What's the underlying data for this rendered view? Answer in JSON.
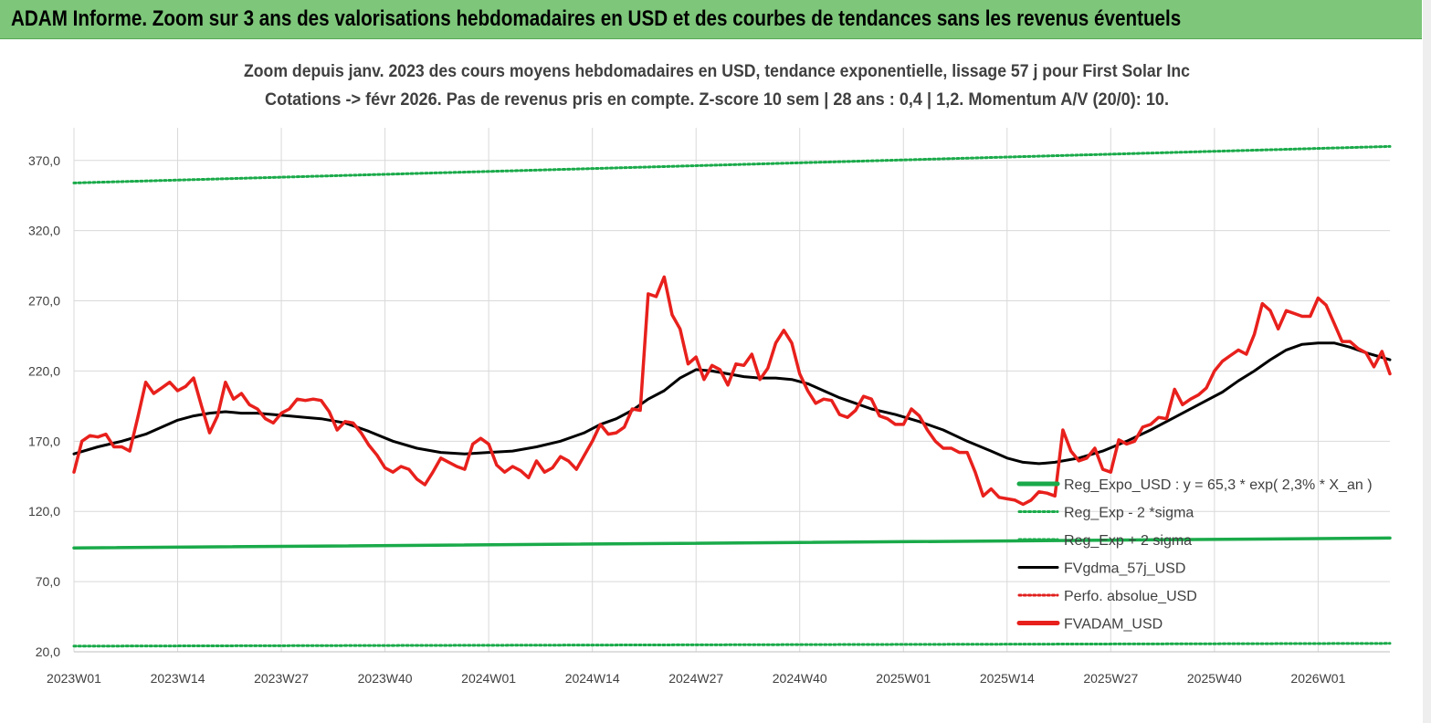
{
  "header": {
    "title": "ADAM Informe. Zoom sur 3 ans des valorisations hebdomadaires en USD et des courbes de tendances sans les revenus éventuels"
  },
  "chart_data": {
    "type": "line",
    "title": "Zoom depuis janv. 2023 des cours moyens hebdomadaires en USD, tendance exponentielle, lissage 57 j pour First Solar Inc",
    "subtitle": "Cotations -> févr 2026.  Pas de revenus pris en compte. Z-score 10 sem  | 28 ans : 0,4 | 1,2. Momentum A/V (20/0): 10.",
    "xlabel": "",
    "ylabel": "",
    "ylim": [
      20,
      390
    ],
    "y_ticks": [
      "20,0",
      "70,0",
      "120,0",
      "170,0",
      "220,0",
      "270,0",
      "320,0",
      "370,0"
    ],
    "y_tick_values": [
      20,
      70,
      120,
      170,
      220,
      270,
      320,
      370
    ],
    "x_ticks": [
      "2023W01",
      "2023W14",
      "2023W27",
      "2023W40",
      "2024W01",
      "2024W14",
      "2024W27",
      "2024W40",
      "2025W01",
      "2025W14",
      "2025W27",
      "2025W40",
      "2026W01"
    ],
    "x_tick_weeks": [
      0,
      13,
      26,
      39,
      52,
      65,
      78,
      91,
      104,
      117,
      130,
      143,
      156
    ],
    "week_count": 165,
    "grid": true,
    "legend_position": "bottom-right",
    "series": [
      {
        "name": "Reg_Expo_USD : y = 65,3 * exp( 2,3% *  X_an )",
        "color": "#1aaa4a",
        "style": "solid-thick",
        "x": [
          0,
          165
        ],
        "values": [
          94,
          101
        ]
      },
      {
        "name": "Reg_Exp - 2 *sigma",
        "color": "#1aaa4a",
        "style": "dotted",
        "x": [
          0,
          165
        ],
        "values": [
          24,
          26
        ]
      },
      {
        "name": "Reg_Exp + 2 sigma",
        "color": "#1aaa4a",
        "style": "dotted",
        "x": [
          0,
          165
        ],
        "values": [
          354,
          380
        ]
      },
      {
        "name": "FVgdma_57j_USD",
        "color": "#000000",
        "style": "solid",
        "x": [
          0,
          3,
          6,
          9,
          11,
          13,
          15,
          17,
          19,
          21,
          23,
          25,
          27,
          29,
          31,
          34,
          37,
          40,
          43,
          46,
          49,
          52,
          55,
          58,
          61,
          64,
          66,
          68,
          70,
          72,
          74,
          76,
          78,
          80,
          82,
          84,
          86,
          88,
          90,
          92,
          94,
          96,
          98,
          100,
          103,
          106,
          109,
          112,
          115,
          117,
          119,
          121,
          123,
          126,
          129,
          132,
          135,
          138,
          141,
          144,
          146,
          148,
          150,
          152,
          154,
          156,
          158,
          160,
          162,
          165
        ],
        "values": [
          161,
          166,
          170,
          175,
          180,
          185,
          188,
          190,
          191,
          190,
          190,
          189,
          188,
          187,
          186,
          183,
          177,
          170,
          165,
          162,
          161,
          162,
          163,
          166,
          170,
          176,
          182,
          186,
          192,
          200,
          206,
          215,
          221,
          220,
          218,
          216,
          215,
          215,
          214,
          211,
          206,
          201,
          197,
          193,
          189,
          184,
          178,
          170,
          163,
          158,
          155,
          154,
          155,
          158,
          163,
          170,
          178,
          187,
          196,
          205,
          213,
          220,
          228,
          235,
          239,
          240,
          240,
          237,
          233,
          228
        ]
      },
      {
        "name": "Perfo. absolue_USD",
        "color": "#e0201e",
        "style": "dotted",
        "x": [],
        "values": []
      },
      {
        "name": "FVADAM_USD",
        "color": "#e8201c",
        "style": "solid-thick",
        "x": [
          0,
          1,
          2,
          3,
          4,
          5,
          6,
          7,
          8,
          9,
          10,
          11,
          12,
          13,
          14,
          15,
          16,
          17,
          18,
          19,
          20,
          21,
          22,
          23,
          24,
          25,
          26,
          27,
          28,
          29,
          30,
          31,
          32,
          33,
          34,
          35,
          36,
          37,
          38,
          39,
          40,
          41,
          42,
          43,
          44,
          45,
          46,
          47,
          48,
          49,
          50,
          51,
          52,
          53,
          54,
          55,
          56,
          57,
          58,
          59,
          60,
          61,
          62,
          63,
          64,
          65,
          66,
          67,
          68,
          69,
          70,
          71,
          72,
          73,
          74,
          75,
          76,
          77,
          78,
          79,
          80,
          81,
          82,
          83,
          84,
          85,
          86,
          87,
          88,
          89,
          90,
          91,
          92,
          93,
          94,
          95,
          96,
          97,
          98,
          99,
          100,
          101,
          102,
          103,
          104,
          105,
          106,
          107,
          108,
          109,
          110,
          111,
          112,
          113,
          114,
          115,
          116,
          117,
          118,
          119,
          120,
          121,
          122,
          123,
          124,
          125,
          126,
          127,
          128,
          129,
          130,
          131,
          132,
          133,
          134,
          135,
          136,
          137,
          138,
          139,
          140,
          141,
          142,
          143,
          144,
          145,
          146,
          147,
          148,
          149,
          150,
          151,
          152,
          153,
          154,
          155,
          156,
          157,
          158,
          159,
          160,
          161,
          162,
          163,
          164,
          165
        ],
        "values": [
          148,
          170,
          174,
          173,
          175,
          166,
          166,
          163,
          187,
          212,
          204,
          208,
          212,
          206,
          209,
          215,
          195,
          176,
          188,
          212,
          200,
          204,
          196,
          193,
          186,
          183,
          190,
          193,
          200,
          199,
          200,
          199,
          191,
          178,
          184,
          183,
          176,
          167,
          160,
          151,
          148,
          152,
          150,
          143,
          139,
          148,
          158,
          155,
          152,
          150,
          168,
          172,
          168,
          153,
          148,
          152,
          149,
          144,
          156,
          148,
          151,
          159,
          156,
          150,
          160,
          170,
          182,
          175,
          176,
          180,
          193,
          192,
          275,
          273,
          287,
          260,
          250,
          225,
          230,
          214,
          224,
          221,
          210,
          225,
          224,
          232,
          214,
          222,
          240,
          249,
          240,
          218,
          206,
          197,
          200,
          199,
          189,
          187,
          192,
          202,
          200,
          188,
          186,
          182,
          182,
          193,
          188,
          178,
          170,
          165,
          165,
          162,
          162,
          148,
          131,
          136,
          130,
          129,
          128,
          125,
          128,
          134,
          133,
          131,
          178,
          163,
          156,
          158,
          165,
          150,
          148,
          171,
          168,
          170,
          180,
          182,
          187,
          186,
          207,
          196,
          200,
          203,
          208,
          220,
          227,
          231,
          235,
          232,
          246,
          268,
          263,
          250,
          263,
          261,
          259,
          259,
          272,
          267,
          254,
          241,
          241,
          236,
          233,
          223,
          234,
          218
        ]
      }
    ]
  }
}
